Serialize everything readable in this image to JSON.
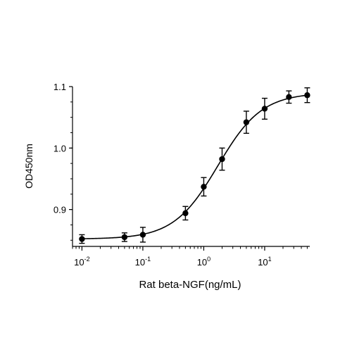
{
  "chart_data": {
    "type": "scatter",
    "title": "",
    "xlabel": "Rat beta-NGF(ng/mL)",
    "ylabel": "OD450nm",
    "x_scale": "log10",
    "xlim": [
      0.007,
      55
    ],
    "ylim": [
      0.84,
      1.1
    ],
    "x_ticks": [
      {
        "base": "10",
        "exp": "-2",
        "value": 0.01
      },
      {
        "base": "10",
        "exp": "-1",
        "value": 0.1
      },
      {
        "base": "10",
        "exp": "0",
        "value": 1
      },
      {
        "base": "10",
        "exp": "1",
        "value": 10
      }
    ],
    "y_ticks": [
      {
        "label": "0.9",
        "value": 0.9
      },
      {
        "label": "1.0",
        "value": 1.0
      },
      {
        "label": "1.1",
        "value": 1.1
      }
    ],
    "grid": false,
    "legend": "none",
    "series": [
      {
        "points": [
          {
            "x": 0.01,
            "y": 0.852,
            "err": 0.007
          },
          {
            "x": 0.05,
            "y": 0.855,
            "err": 0.007
          },
          {
            "x": 0.1,
            "y": 0.859,
            "err": 0.012
          },
          {
            "x": 0.5,
            "y": 0.894,
            "err": 0.011
          },
          {
            "x": 1,
            "y": 0.937,
            "err": 0.015
          },
          {
            "x": 2,
            "y": 0.982,
            "err": 0.018
          },
          {
            "x": 5,
            "y": 1.042,
            "err": 0.018
          },
          {
            "x": 10,
            "y": 1.064,
            "err": 0.017
          },
          {
            "x": 25,
            "y": 1.083,
            "err": 0.01
          },
          {
            "x": 50,
            "y": 1.086,
            "err": 0.012
          }
        ],
        "fit": {
          "model": "4PL",
          "bottom": 0.852,
          "top": 1.09,
          "ec50": 1.7,
          "hill": 1.2
        }
      }
    ],
    "colors": {
      "marker": "#000000",
      "line": "#000000"
    }
  }
}
